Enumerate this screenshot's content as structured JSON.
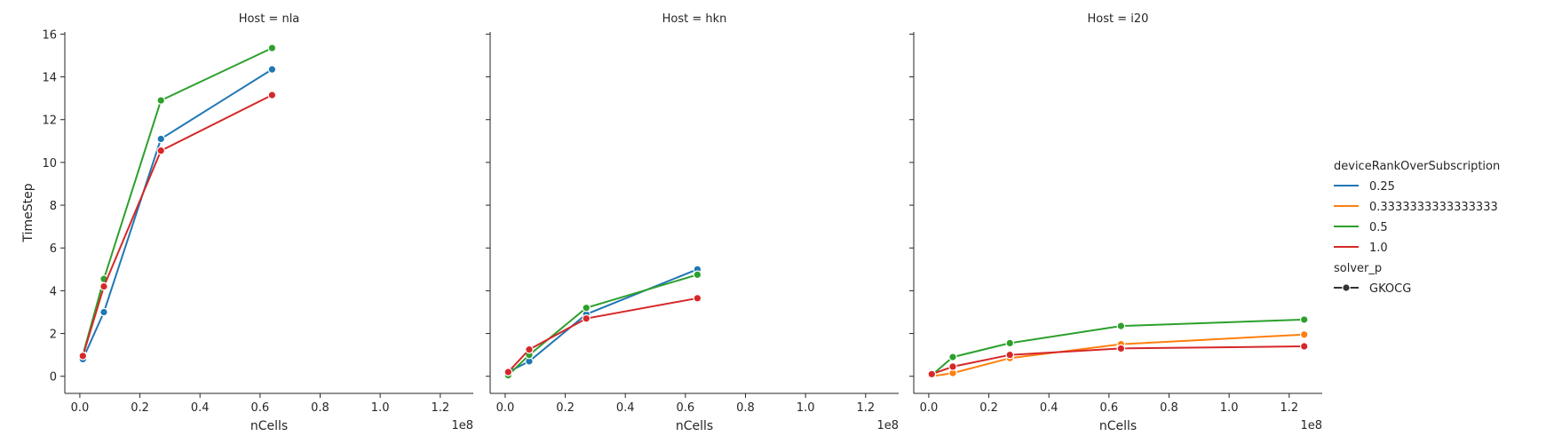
{
  "chart_data": {
    "type": "line",
    "xlabel": "nCells",
    "ylabel": "TimeStep",
    "x_offset_label": "1e8",
    "xlim": [
      -0.05,
      1.31
    ],
    "ylim": [
      -0.8,
      16.1
    ],
    "x_ticks": [
      0.0,
      0.2,
      0.4,
      0.6,
      0.8,
      1.0,
      1.2
    ],
    "x_tick_labels": [
      "0.0",
      "0.2",
      "0.4",
      "0.6",
      "0.8",
      "1.0",
      "1.2"
    ],
    "y_ticks": [
      0,
      2,
      4,
      6,
      8,
      10,
      12,
      14,
      16
    ],
    "y_tick_labels": [
      "0",
      "2",
      "4",
      "6",
      "8",
      "10",
      "12",
      "14",
      "16"
    ],
    "colors": {
      "0.25": "#1f77b4",
      "0.3333333333333333": "#ff7f0e",
      "0.5": "#2ca02c",
      "1.0": "#d62728"
    },
    "legend": {
      "hue_title": "deviceRankOverSubscription",
      "hue_entries": [
        "0.25",
        "0.3333333333333333",
        "0.5",
        "1.0"
      ],
      "style_title": "solver_p",
      "style_entries": [
        "GKOCG"
      ]
    },
    "panels": [
      {
        "title": "Host = nla",
        "series": [
          {
            "name": "0.25",
            "x": [
              0.01,
              0.08,
              0.27,
              0.64
            ],
            "y": [
              0.8,
              3.0,
              11.1,
              14.35
            ]
          },
          {
            "name": "0.5",
            "x": [
              0.01,
              0.08,
              0.27,
              0.64
            ],
            "y": [
              1.0,
              4.55,
              12.9,
              15.35
            ]
          },
          {
            "name": "1.0",
            "x": [
              0.01,
              0.08,
              0.27,
              0.64
            ],
            "y": [
              0.95,
              4.2,
              10.55,
              13.15
            ]
          }
        ]
      },
      {
        "title": "Host = hkn",
        "series": [
          {
            "name": "0.25",
            "x": [
              0.01,
              0.08,
              0.27,
              0.64
            ],
            "y": [
              0.2,
              0.7,
              2.9,
              5.0
            ]
          },
          {
            "name": "0.5",
            "x": [
              0.01,
              0.08,
              0.27,
              0.64
            ],
            "y": [
              0.05,
              1.0,
              3.2,
              4.75
            ]
          },
          {
            "name": "1.0",
            "x": [
              0.01,
              0.08,
              0.27,
              0.64
            ],
            "y": [
              0.2,
              1.25,
              2.7,
              3.65
            ]
          }
        ]
      },
      {
        "title": "Host = i20",
        "series": [
          {
            "name": "0.3333333333333333",
            "x": [
              0.01,
              0.08,
              0.27,
              0.64,
              1.25
            ],
            "y": [
              0.0,
              0.15,
              0.85,
              1.5,
              1.95
            ]
          },
          {
            "name": "0.5",
            "x": [
              0.01,
              0.08,
              0.27,
              0.64,
              1.25
            ],
            "y": [
              0.05,
              0.9,
              1.55,
              2.35,
              2.65
            ]
          },
          {
            "name": "1.0",
            "x": [
              0.01,
              0.08,
              0.27,
              0.64,
              1.25
            ],
            "y": [
              0.1,
              0.45,
              1.0,
              1.3,
              1.4
            ]
          }
        ]
      }
    ]
  }
}
